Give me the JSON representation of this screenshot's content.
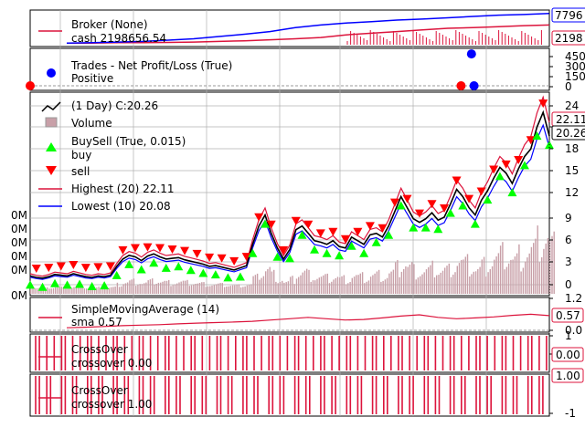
{
  "chart_data": {
    "type": "line",
    "panels": [
      {
        "id": "broker",
        "legend": [
          "Broker (None)",
          "cash 2198656.54"
        ],
        "badges": [
          "7796",
          "2198"
        ],
        "series": [
          {
            "name": "cash",
            "color": "#dc143c",
            "values": [
              0.05,
              0.05,
              0.06,
              0.06,
              0.07,
              0.08,
              0.1,
              0.12,
              0.15,
              0.18,
              0.22,
              0.3,
              0.35,
              0.4,
              0.45,
              0.5,
              0.52,
              0.55,
              0.58,
              0.6
            ]
          },
          {
            "name": "value",
            "color": "#0000ff",
            "values": [
              0.05,
              0.06,
              0.08,
              0.1,
              0.14,
              0.18,
              0.25,
              0.32,
              0.4,
              0.52,
              0.6,
              0.66,
              0.7,
              0.75,
              0.78,
              0.82,
              0.86,
              0.9,
              0.92,
              0.95
            ]
          }
        ]
      },
      {
        "id": "trades",
        "legend": [
          "Trades - Net Profit/Loss (True)",
          "Positive"
        ],
        "ticks": [
          "450",
          "300",
          "150",
          "0"
        ],
        "points": [
          {
            "x": 0.0,
            "y": 0,
            "color": "#ff0000"
          },
          {
            "x": 0.83,
            "y": 0,
            "color": "#ff0000"
          },
          {
            "x": 0.855,
            "y": 0,
            "color": "#0000ff"
          },
          {
            "x": 0.85,
            "y": 430,
            "color": "#0000ff"
          }
        ]
      },
      {
        "id": "price",
        "legend": [
          "(1 Day) C:20.26",
          "Volume",
          "BuySell (True, 0.015)",
          "buy",
          "sell",
          "Highest (20) 22.11",
          "Lowest (10) 20.08"
        ],
        "ticks_right": [
          "24",
          "21",
          "18",
          "15",
          "12",
          "9",
          "6",
          "3",
          "0"
        ],
        "ticks_left": [
          "0M",
          "0M",
          "0M",
          "0M",
          "0M",
          "0M"
        ],
        "badges": [
          "22.11",
          "20.26"
        ],
        "close": [
          1.2,
          1.0,
          0.9,
          1.1,
          1.4,
          1.3,
          1.2,
          1.5,
          1.3,
          1.1,
          1.0,
          1.2,
          1.1,
          1.3,
          2.5,
          3.5,
          4.0,
          3.8,
          3.3,
          3.9,
          4.2,
          3.8,
          3.5,
          3.6,
          3.7,
          3.4,
          3.2,
          3.0,
          2.8,
          2.5,
          2.6,
          2.4,
          2.2,
          2.0,
          2.3,
          2.6,
          5.5,
          8.0,
          9.5,
          7.0,
          5.0,
          3.5,
          4.8,
          7.5,
          8.0,
          7.0,
          6.0,
          5.8,
          5.5,
          6.0,
          5.2,
          5.0,
          6.5,
          6.0,
          5.5,
          6.8,
          7.0,
          6.5,
          8.0,
          10.0,
          12.0,
          10.5,
          9.0,
          8.5,
          9.0,
          9.8,
          8.8,
          9.2,
          11.0,
          13.0,
          12.0,
          10.5,
          9.5,
          11.5,
          12.8,
          14.5,
          16.0,
          15.2,
          13.8,
          15.8,
          17.5,
          18.5,
          21.5,
          23.5,
          20.26
        ]
      },
      {
        "id": "sma",
        "legend": [
          "SimpleMovingAverage (14)",
          "sma 0.57"
        ],
        "ticks": [
          "1.2",
          "0.0"
        ],
        "badges": [
          "0.57"
        ],
        "values": [
          0.1,
          0.12,
          0.15,
          0.18,
          0.2,
          0.22,
          0.25,
          0.28,
          0.3,
          0.32,
          0.35,
          0.4,
          0.45,
          0.5,
          0.45,
          0.4,
          0.42,
          0.48,
          0.55,
          0.6,
          0.5,
          0.45,
          0.48,
          0.52,
          0.58,
          0.62,
          0.57
        ]
      },
      {
        "id": "crossover1",
        "legend": [
          "CrossOver",
          "crossover 0.00"
        ],
        "ticks": [
          "1",
          "0"
        ],
        "badges": [
          "0.00"
        ]
      },
      {
        "id": "crossover2",
        "legend": [
          "CrossOver",
          "crossover 1.00"
        ],
        "ticks": [
          "-1"
        ],
        "badges": [
          "1.00"
        ]
      }
    ]
  },
  "colors": {
    "cash": "#dc143c",
    "value": "#0000ff",
    "buy": "#00ff00",
    "sell": "#ff0000",
    "close": "#000000",
    "volume": "#c8a0a8",
    "crossover": "#dc143c",
    "grid": "#b0b0b0"
  }
}
